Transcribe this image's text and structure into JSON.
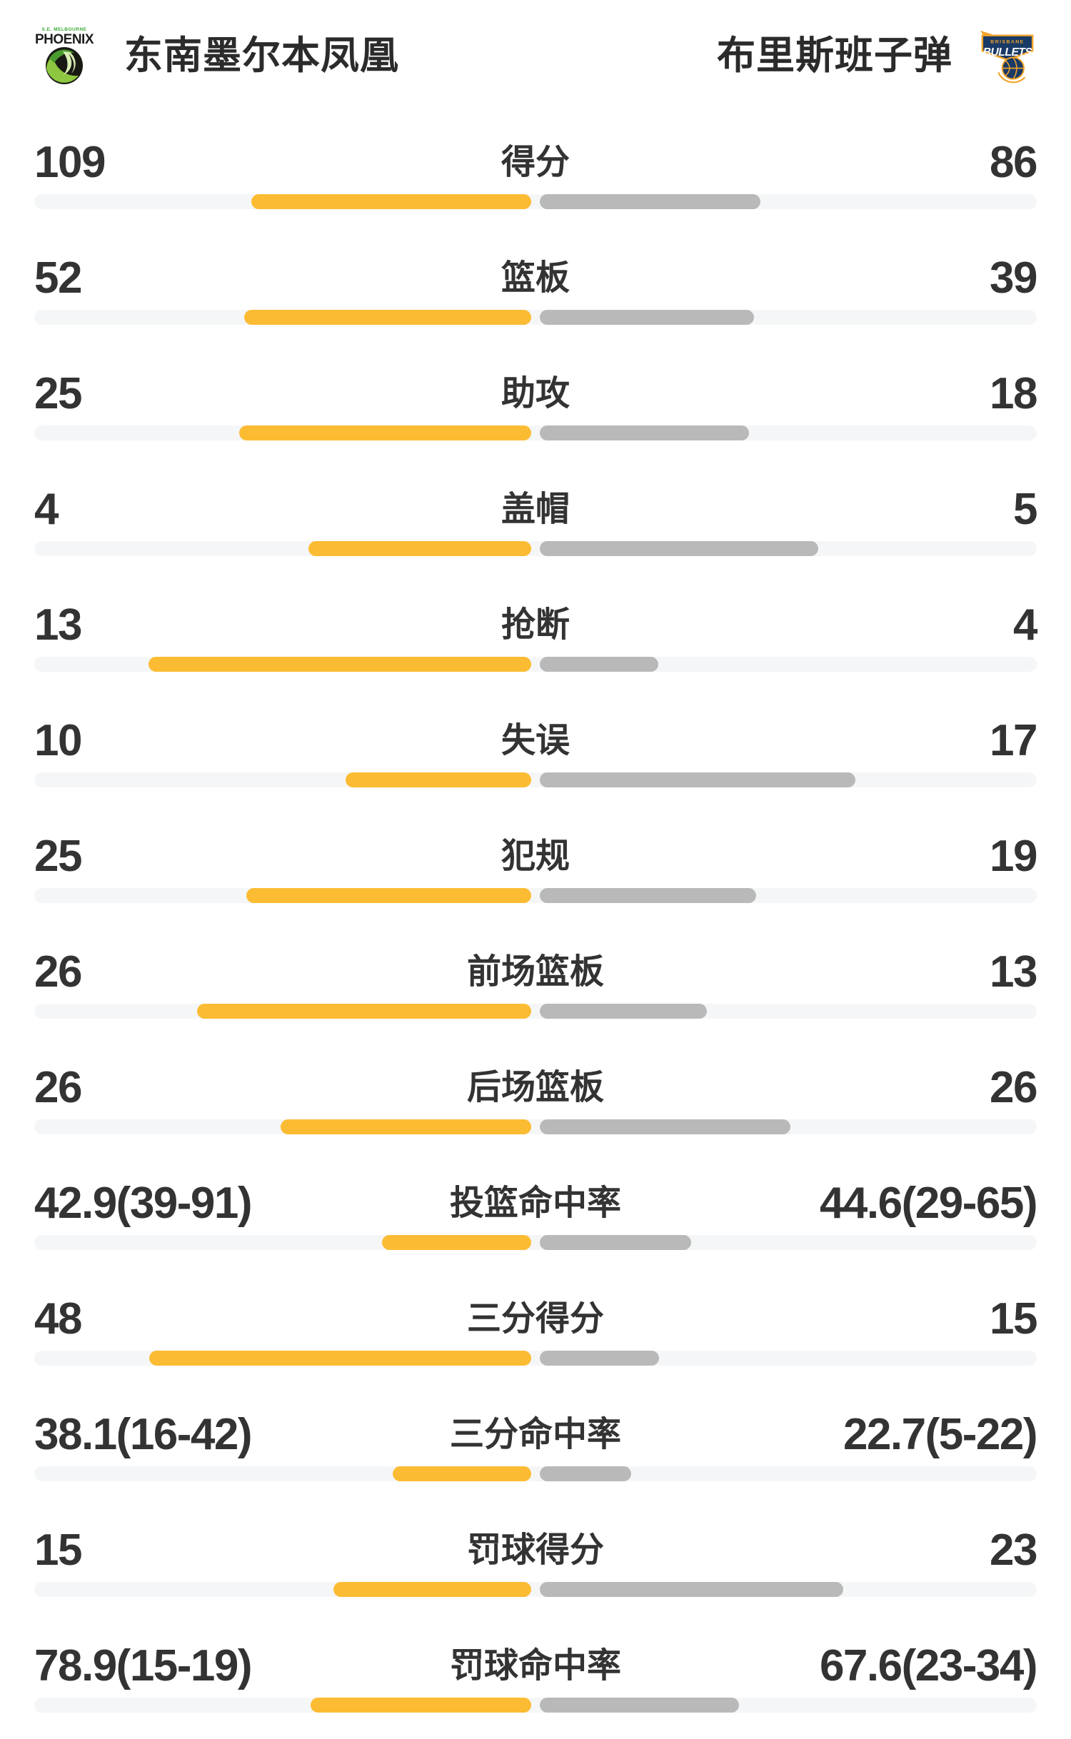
{
  "header": {
    "home": {
      "name": "东南墨尔本凤凰",
      "logo_top": "S.E. MELBOURNE",
      "logo_main": "PHOENIX"
    },
    "away": {
      "name": "布里斯班子弹",
      "logo_top": "BRISBANE",
      "logo_main": "BULLETS"
    }
  },
  "colors": {
    "home_bar": "#fbbc34",
    "away_bar": "#b9b9b9",
    "track": "#f5f6f7",
    "text": "#333333",
    "phoenix_green": "#59b53e",
    "phoenix_dark": "#191914",
    "bullets_navy": "#1a3a66",
    "bullets_gold": "#f2a42a"
  },
  "stats": {
    "rows": [
      {
        "label": "得分",
        "home": "109",
        "away": "86",
        "home_bar_pct": 27.9,
        "away_bar_pct": 22.0
      },
      {
        "label": "篮板",
        "home": "52",
        "away": "39",
        "home_bar_pct": 28.6,
        "away_bar_pct": 21.4
      },
      {
        "label": "助攻",
        "home": "25",
        "away": "18",
        "home_bar_pct": 29.1,
        "away_bar_pct": 20.9
      },
      {
        "label": "盖帽",
        "home": "4",
        "away": "5",
        "home_bar_pct": 22.2,
        "away_bar_pct": 27.8
      },
      {
        "label": "抢断",
        "home": "13",
        "away": "4",
        "home_bar_pct": 38.2,
        "away_bar_pct": 11.8
      },
      {
        "label": "失误",
        "home": "10",
        "away": "17",
        "home_bar_pct": 18.5,
        "away_bar_pct": 31.5
      },
      {
        "label": "犯规",
        "home": "25",
        "away": "19",
        "home_bar_pct": 28.4,
        "away_bar_pct": 21.6
      },
      {
        "label": "前场篮板",
        "home": "26",
        "away": "13",
        "home_bar_pct": 33.3,
        "away_bar_pct": 16.7
      },
      {
        "label": "后场篮板",
        "home": "26",
        "away": "26",
        "home_bar_pct": 25.0,
        "away_bar_pct": 25.0
      },
      {
        "label": "投篮命中率",
        "home": "42.9(39-91)",
        "away": "44.6(29-65)",
        "home_bar_pct": 14.9,
        "away_bar_pct": 15.1
      },
      {
        "label": "三分得分",
        "home": "48",
        "away": "15",
        "home_bar_pct": 38.1,
        "away_bar_pct": 11.9
      },
      {
        "label": "三分命中率",
        "home": "38.1(16-42)",
        "away": "22.7(5-22)",
        "home_bar_pct": 13.8,
        "away_bar_pct": 9.1
      },
      {
        "label": "罚球得分",
        "home": "15",
        "away": "23",
        "home_bar_pct": 19.7,
        "away_bar_pct": 30.3
      },
      {
        "label": "罚球命中率",
        "home": "78.9(15-19)",
        "away": "67.6(23-34)",
        "home_bar_pct": 22.0,
        "away_bar_pct": 19.9
      }
    ]
  },
  "chart_data": {
    "type": "bar",
    "categories": [
      "得分",
      "篮板",
      "助攻",
      "盖帽",
      "抢断",
      "失误",
      "犯规",
      "前场篮板",
      "后场篮板",
      "投篮命中率",
      "三分得分",
      "三分命中率",
      "罚球得分",
      "罚球命中率"
    ],
    "series": [
      {
        "name": "东南墨尔本凤凰",
        "values": [
          109,
          52,
          25,
          4,
          13,
          10,
          25,
          26,
          26,
          42.9,
          48,
          38.1,
          15,
          78.9
        ]
      },
      {
        "name": "布里斯班子弹",
        "values": [
          86,
          39,
          18,
          5,
          4,
          17,
          19,
          13,
          26,
          44.6,
          15,
          22.7,
          23,
          67.6
        ]
      }
    ],
    "title": "",
    "legend_position": "top"
  }
}
